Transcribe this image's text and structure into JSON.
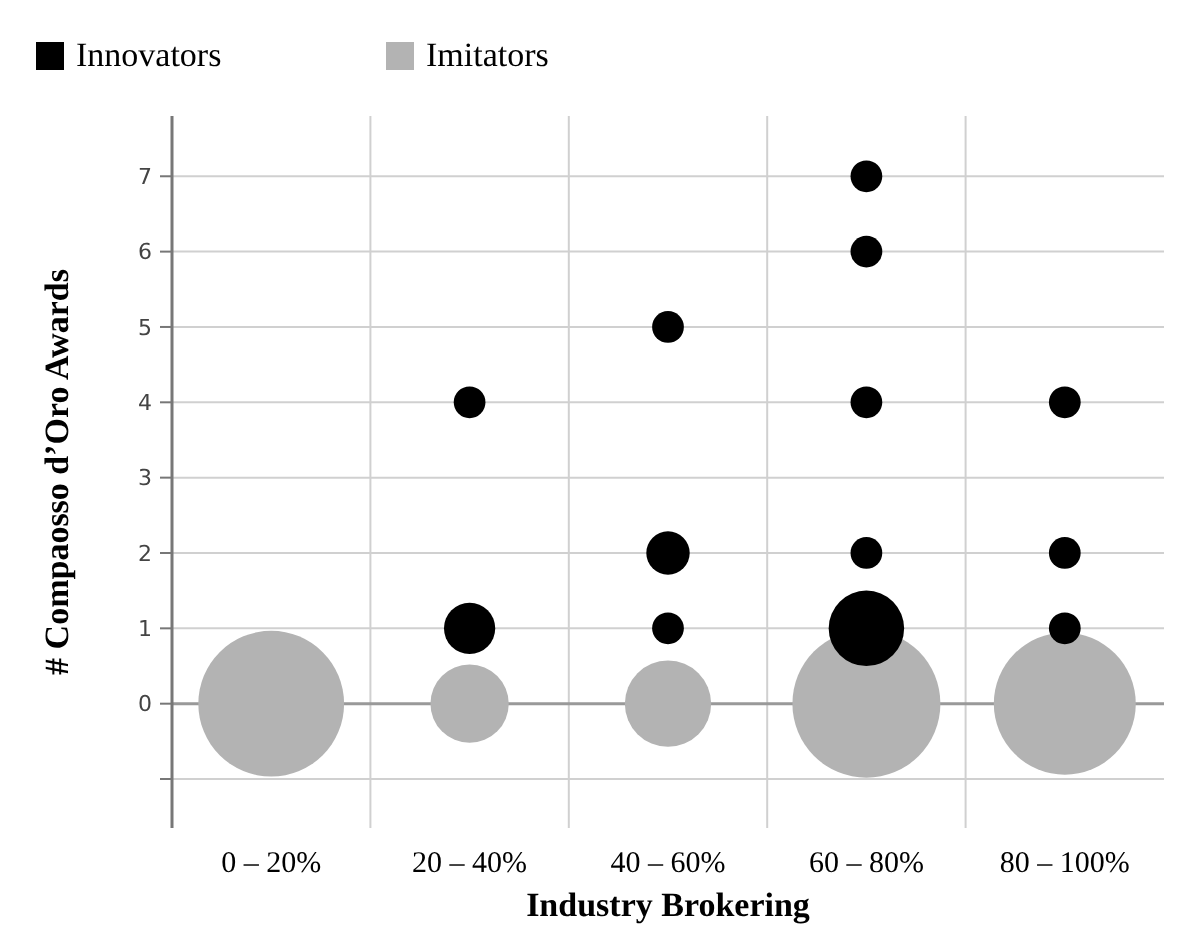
{
  "chart_data": {
    "type": "bubble",
    "xlabel": "Industry Brokering",
    "ylabel": "# Compaosso d’Oro Awards",
    "categories": [
      "0 – 20%",
      "20 – 40%",
      "40 – 60%",
      "60 – 80%",
      "80 – 100%"
    ],
    "ylim": [
      -1.65,
      7.8
    ],
    "yticks": [
      {
        "value": -1,
        "label": null
      },
      0,
      1,
      2,
      3,
      4,
      5,
      6,
      7
    ],
    "grid": true,
    "legend": "top left",
    "series": [
      {
        "name": "Imitators",
        "color": "#b3b3b3",
        "x": [
          "0 – 20%",
          "20 – 40%",
          "40 – 60%",
          "60 – 80%",
          "80 – 100%"
        ],
        "values": [
          0,
          0,
          0,
          0,
          0
        ],
        "sizes": [
          0.97,
          0.28,
          0.34,
          1,
          0.92
        ]
      },
      {
        "name": "Innovators",
        "color": "#000000",
        "x": [
          "20 – 40%",
          "20 – 40%",
          "40 – 60%",
          "40 – 60%",
          "40 – 60%",
          "60 – 80%",
          "60 – 80%",
          "60 – 80%",
          "60 – 80%",
          "60 – 80%",
          "80 – 100%",
          "80 – 100%",
          "80 – 100%"
        ],
        "values": [
          1,
          4,
          1,
          2,
          5,
          1,
          2,
          4,
          6,
          7,
          1,
          2,
          4
        ],
        "sizes": [
          0.12,
          0.046,
          0.046,
          0.086,
          0.046,
          0.26,
          0.046,
          0.046,
          0.046,
          0.046,
          0.046,
          0.046,
          0.046
        ]
      }
    ]
  }
}
